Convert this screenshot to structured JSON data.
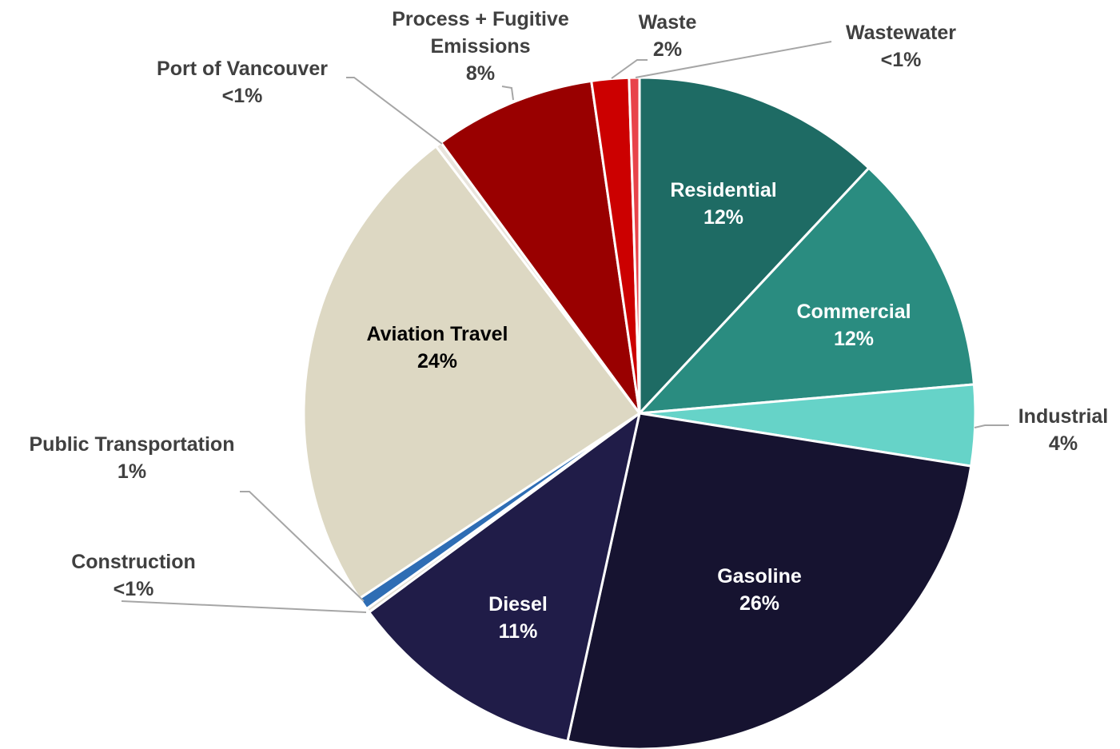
{
  "chart_data": {
    "type": "pie",
    "categories": [
      "Residential",
      "Commercial",
      "Industrial",
      "Gasoline",
      "Diesel",
      "Construction",
      "Public Transportation",
      "Aviation Travel",
      "Port of Vancouver",
      "Process + Fugitive Emissions",
      "Waste",
      "Wastewater"
    ],
    "values": [
      12,
      11.7,
      3.9,
      26,
      11.5,
      0.2,
      0.6,
      24,
      0.3,
      7.8,
      1.8,
      0.5
    ],
    "value_labels": [
      "12%",
      "12%",
      "4%",
      "26%",
      "11%",
      "<1%",
      "1%",
      "24%",
      "<1%",
      "8%",
      "2%",
      "<1%"
    ],
    "colors": [
      "#1e6b64",
      "#2a8c80",
      "#66d3c8",
      "#161330",
      "#201c48",
      "#e4e0d4",
      "#2e6db4",
      "#ddd8c3",
      "#e8e4dc",
      "#990000",
      "#cc0000",
      "#e8434a"
    ]
  }
}
